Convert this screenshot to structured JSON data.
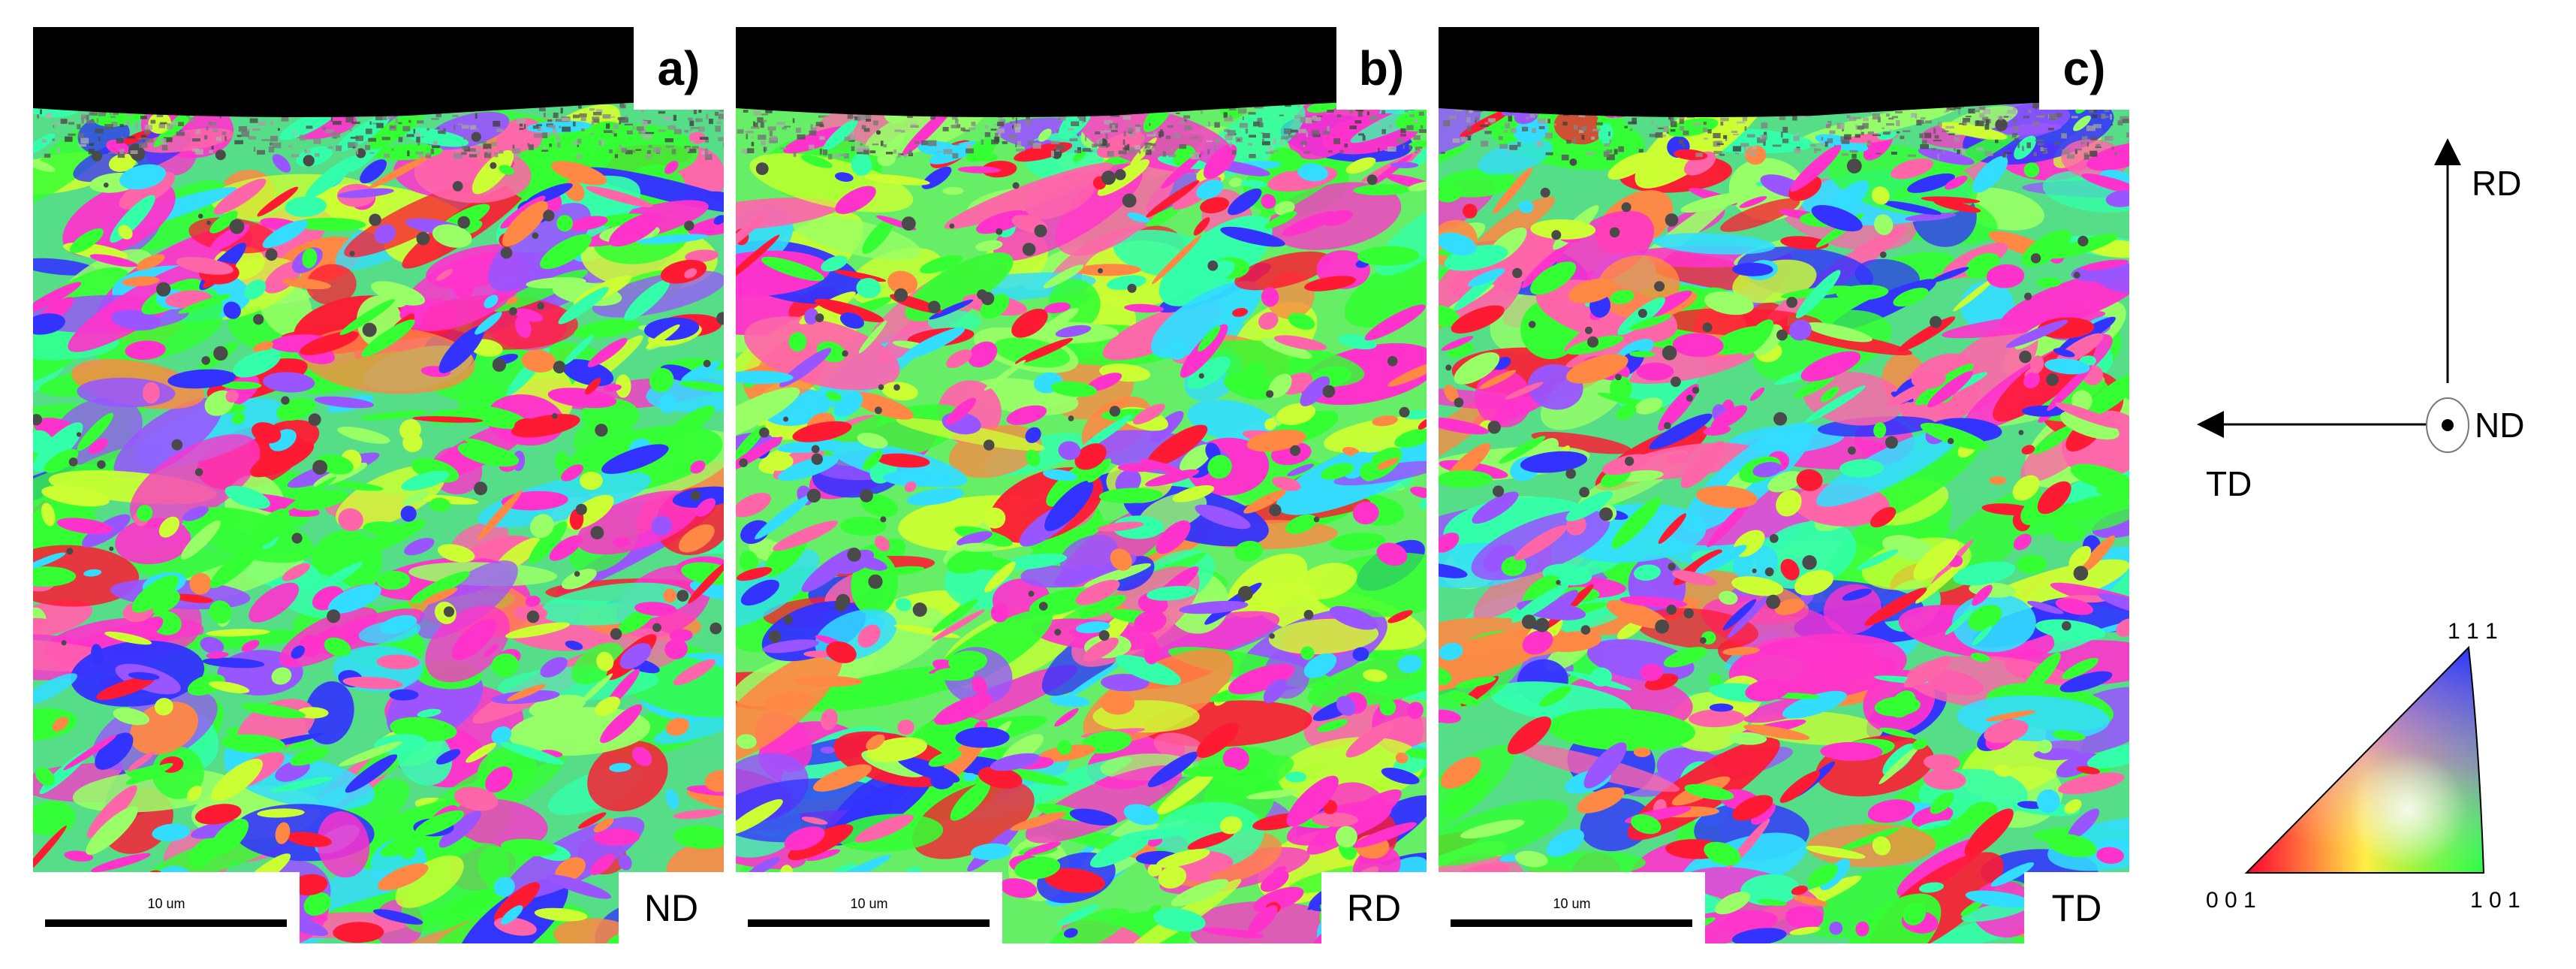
{
  "panels": [
    {
      "id": "a",
      "label": "a)",
      "direction": "ND",
      "scale_text": "10 um",
      "seed": 11
    },
    {
      "id": "b",
      "label": "b)",
      "direction": "RD",
      "scale_text": "10 um",
      "seed": 37
    },
    {
      "id": "c",
      "label": "c)",
      "direction": "TD",
      "scale_text": "10 um",
      "seed": 73
    }
  ],
  "axes": {
    "up_label": "RD",
    "left_label": "TD",
    "out_label": "ND"
  },
  "ipf_key": {
    "top_label": "1 1 1",
    "left_label": "0 0 1",
    "right_label": "1 0 1"
  },
  "colors": {
    "red_001": "#ff1a33",
    "green_101": "#33ff33",
    "blue_111": "#3333ff",
    "magenta": "#ff33cc",
    "cyan": "#33ddff",
    "yellow": "#ccff33",
    "orange": "#ff8844",
    "violet": "#9955ff",
    "pink": "#ff66aa",
    "lightgreen": "#99ff66",
    "teal": "#33ffaa",
    "surface_black": "#000000",
    "surface_gray": "#4a4a4a"
  }
}
